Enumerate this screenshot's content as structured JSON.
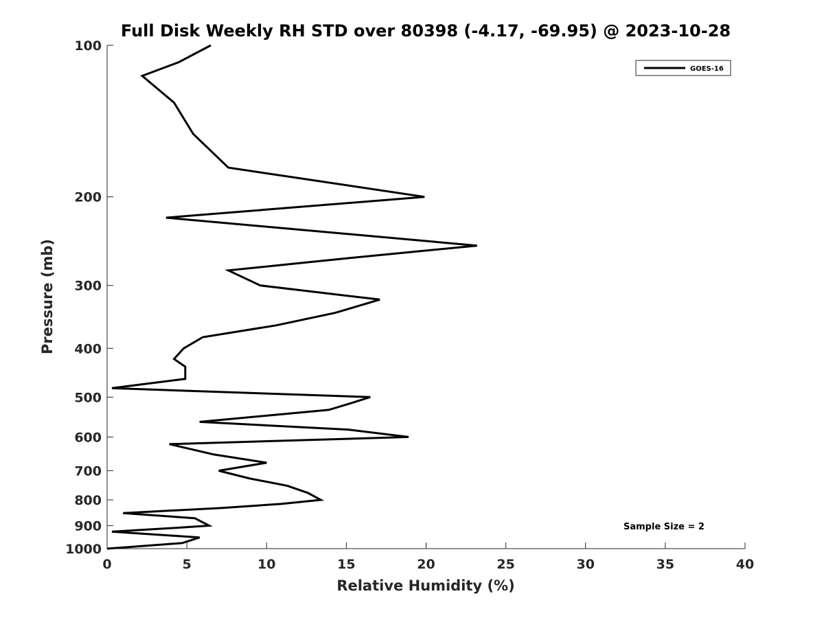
{
  "chart_data": {
    "type": "line",
    "title": "Full Disk Weekly RH STD over 80398 (-4.17, -69.95) @ 2023-10-28",
    "xlabel": "Relative Humidity (%)",
    "ylabel": "Pressure (mb)",
    "xlim": [
      0,
      40
    ],
    "ylim": [
      100,
      1000
    ],
    "yscale": "log",
    "yreversed": true,
    "xticks": [
      0,
      5,
      10,
      15,
      20,
      25,
      30,
      35,
      40
    ],
    "yticks": [
      100,
      200,
      300,
      400,
      500,
      600,
      700,
      800,
      900,
      1000
    ],
    "grid": false,
    "legend_position": "top-right",
    "series": [
      {
        "name": "GOES-16",
        "color": "#000000",
        "x": [
          6.5,
          4.5,
          2.2,
          4.2,
          5.4,
          7.6,
          19.9,
          3.7,
          23.2,
          15.0,
          7.6,
          9.6,
          17.1,
          14.3,
          10.6,
          6.0,
          4.8,
          4.2,
          4.9,
          4.9,
          0.3,
          16.5,
          15.2,
          13.9,
          5.8,
          15.1,
          18.9,
          3.9,
          6.7,
          10.0,
          7.0,
          8.9,
          11.3,
          12.6,
          13.4,
          10.9,
          7.2,
          1.0,
          5.5,
          6.4,
          4.1,
          0.3,
          5.8,
          4.7,
          0.0
        ],
        "y": [
          100,
          108,
          115,
          130,
          150,
          175,
          200,
          220,
          250,
          265,
          280,
          300,
          320,
          340,
          360,
          380,
          400,
          420,
          435,
          460,
          480,
          500,
          515,
          530,
          560,
          580,
          600,
          620,
          650,
          675,
          700,
          725,
          750,
          775,
          800,
          815,
          830,
          850,
          870,
          900,
          910,
          925,
          950,
          975,
          1000
        ]
      }
    ],
    "annotation": "Sample Size = 2"
  }
}
